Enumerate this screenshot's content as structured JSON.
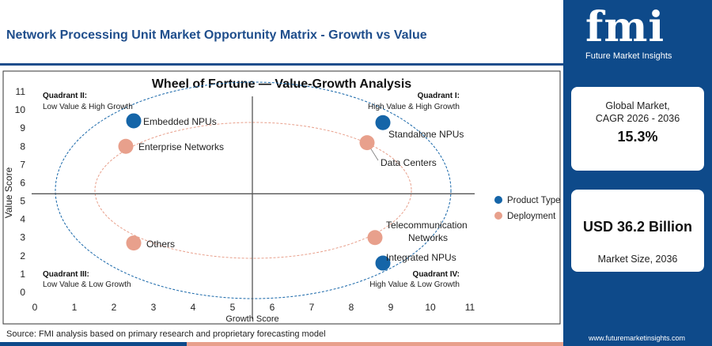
{
  "header": {
    "title": "Network Processing Unit Market Opportunity Matrix - Growth vs Value"
  },
  "brand": {
    "logo_text": "fmi",
    "logo_subtitle": "Future Market Insights",
    "website": "www.futuremarketinsights.com",
    "primary_color": "#0e4a8a",
    "accent_color": "#e8a08c"
  },
  "stats": {
    "cagr_label_line1": "Global Market,",
    "cagr_label_line2": "CAGR 2026 - 2036",
    "cagr_value": "15.3%",
    "size_value": "USD 36.2 Billion",
    "size_label": "Market Size, 2036"
  },
  "source": "Source: FMI analysis based on primary research and proprietary forecasting model",
  "chart_data": {
    "type": "scatter",
    "title": "Wheel of Fortune — Value-Growth Analysis",
    "xlabel": "Growth Score",
    "ylabel": "Value Score",
    "xlim": [
      0,
      11
    ],
    "ylim": [
      0,
      11
    ],
    "xticks": [
      0,
      1,
      2,
      3,
      4,
      5,
      6,
      7,
      8,
      9,
      10,
      11
    ],
    "yticks": [
      0,
      1,
      2,
      3,
      4,
      5,
      6,
      7,
      8,
      9,
      10,
      11
    ],
    "divider_x": 5.5,
    "divider_y": 5.4,
    "grid": false,
    "legend_position": "right",
    "quadrants": [
      {
        "id": "q1",
        "title": "Quadrant I:",
        "subtitle": "High Value & High Growth",
        "position": "top-right"
      },
      {
        "id": "q2",
        "title": "Quadrant II:",
        "subtitle": "Low Value & High Growth",
        "position": "top-left"
      },
      {
        "id": "q3",
        "title": "Quadrant III:",
        "subtitle": "Low Value & Low Growth",
        "position": "bottom-left"
      },
      {
        "id": "q4",
        "title": "Quadrant IV:",
        "subtitle": "High Value & Low Growth",
        "position": "bottom-right"
      }
    ],
    "series": [
      {
        "name": "Product Type",
        "color": "#1565a8",
        "points": [
          {
            "label": "Embedded NPUs",
            "x": 2.5,
            "y": 9.4
          },
          {
            "label": "Standalone NPUs",
            "x": 8.8,
            "y": 9.3
          },
          {
            "label": "Integrated NPUs",
            "x": 8.8,
            "y": 1.6
          }
        ]
      },
      {
        "name": "Deployment",
        "color": "#e8a08c",
        "points": [
          {
            "label": "Enterprise Networks",
            "x": 2.3,
            "y": 8.0
          },
          {
            "label": "Data Centers",
            "x": 8.4,
            "y": 8.2
          },
          {
            "label": "Others",
            "x": 2.5,
            "y": 2.7
          },
          {
            "label": "Telecommunication Networks",
            "x": 8.6,
            "y": 3.0
          }
        ]
      }
    ]
  }
}
